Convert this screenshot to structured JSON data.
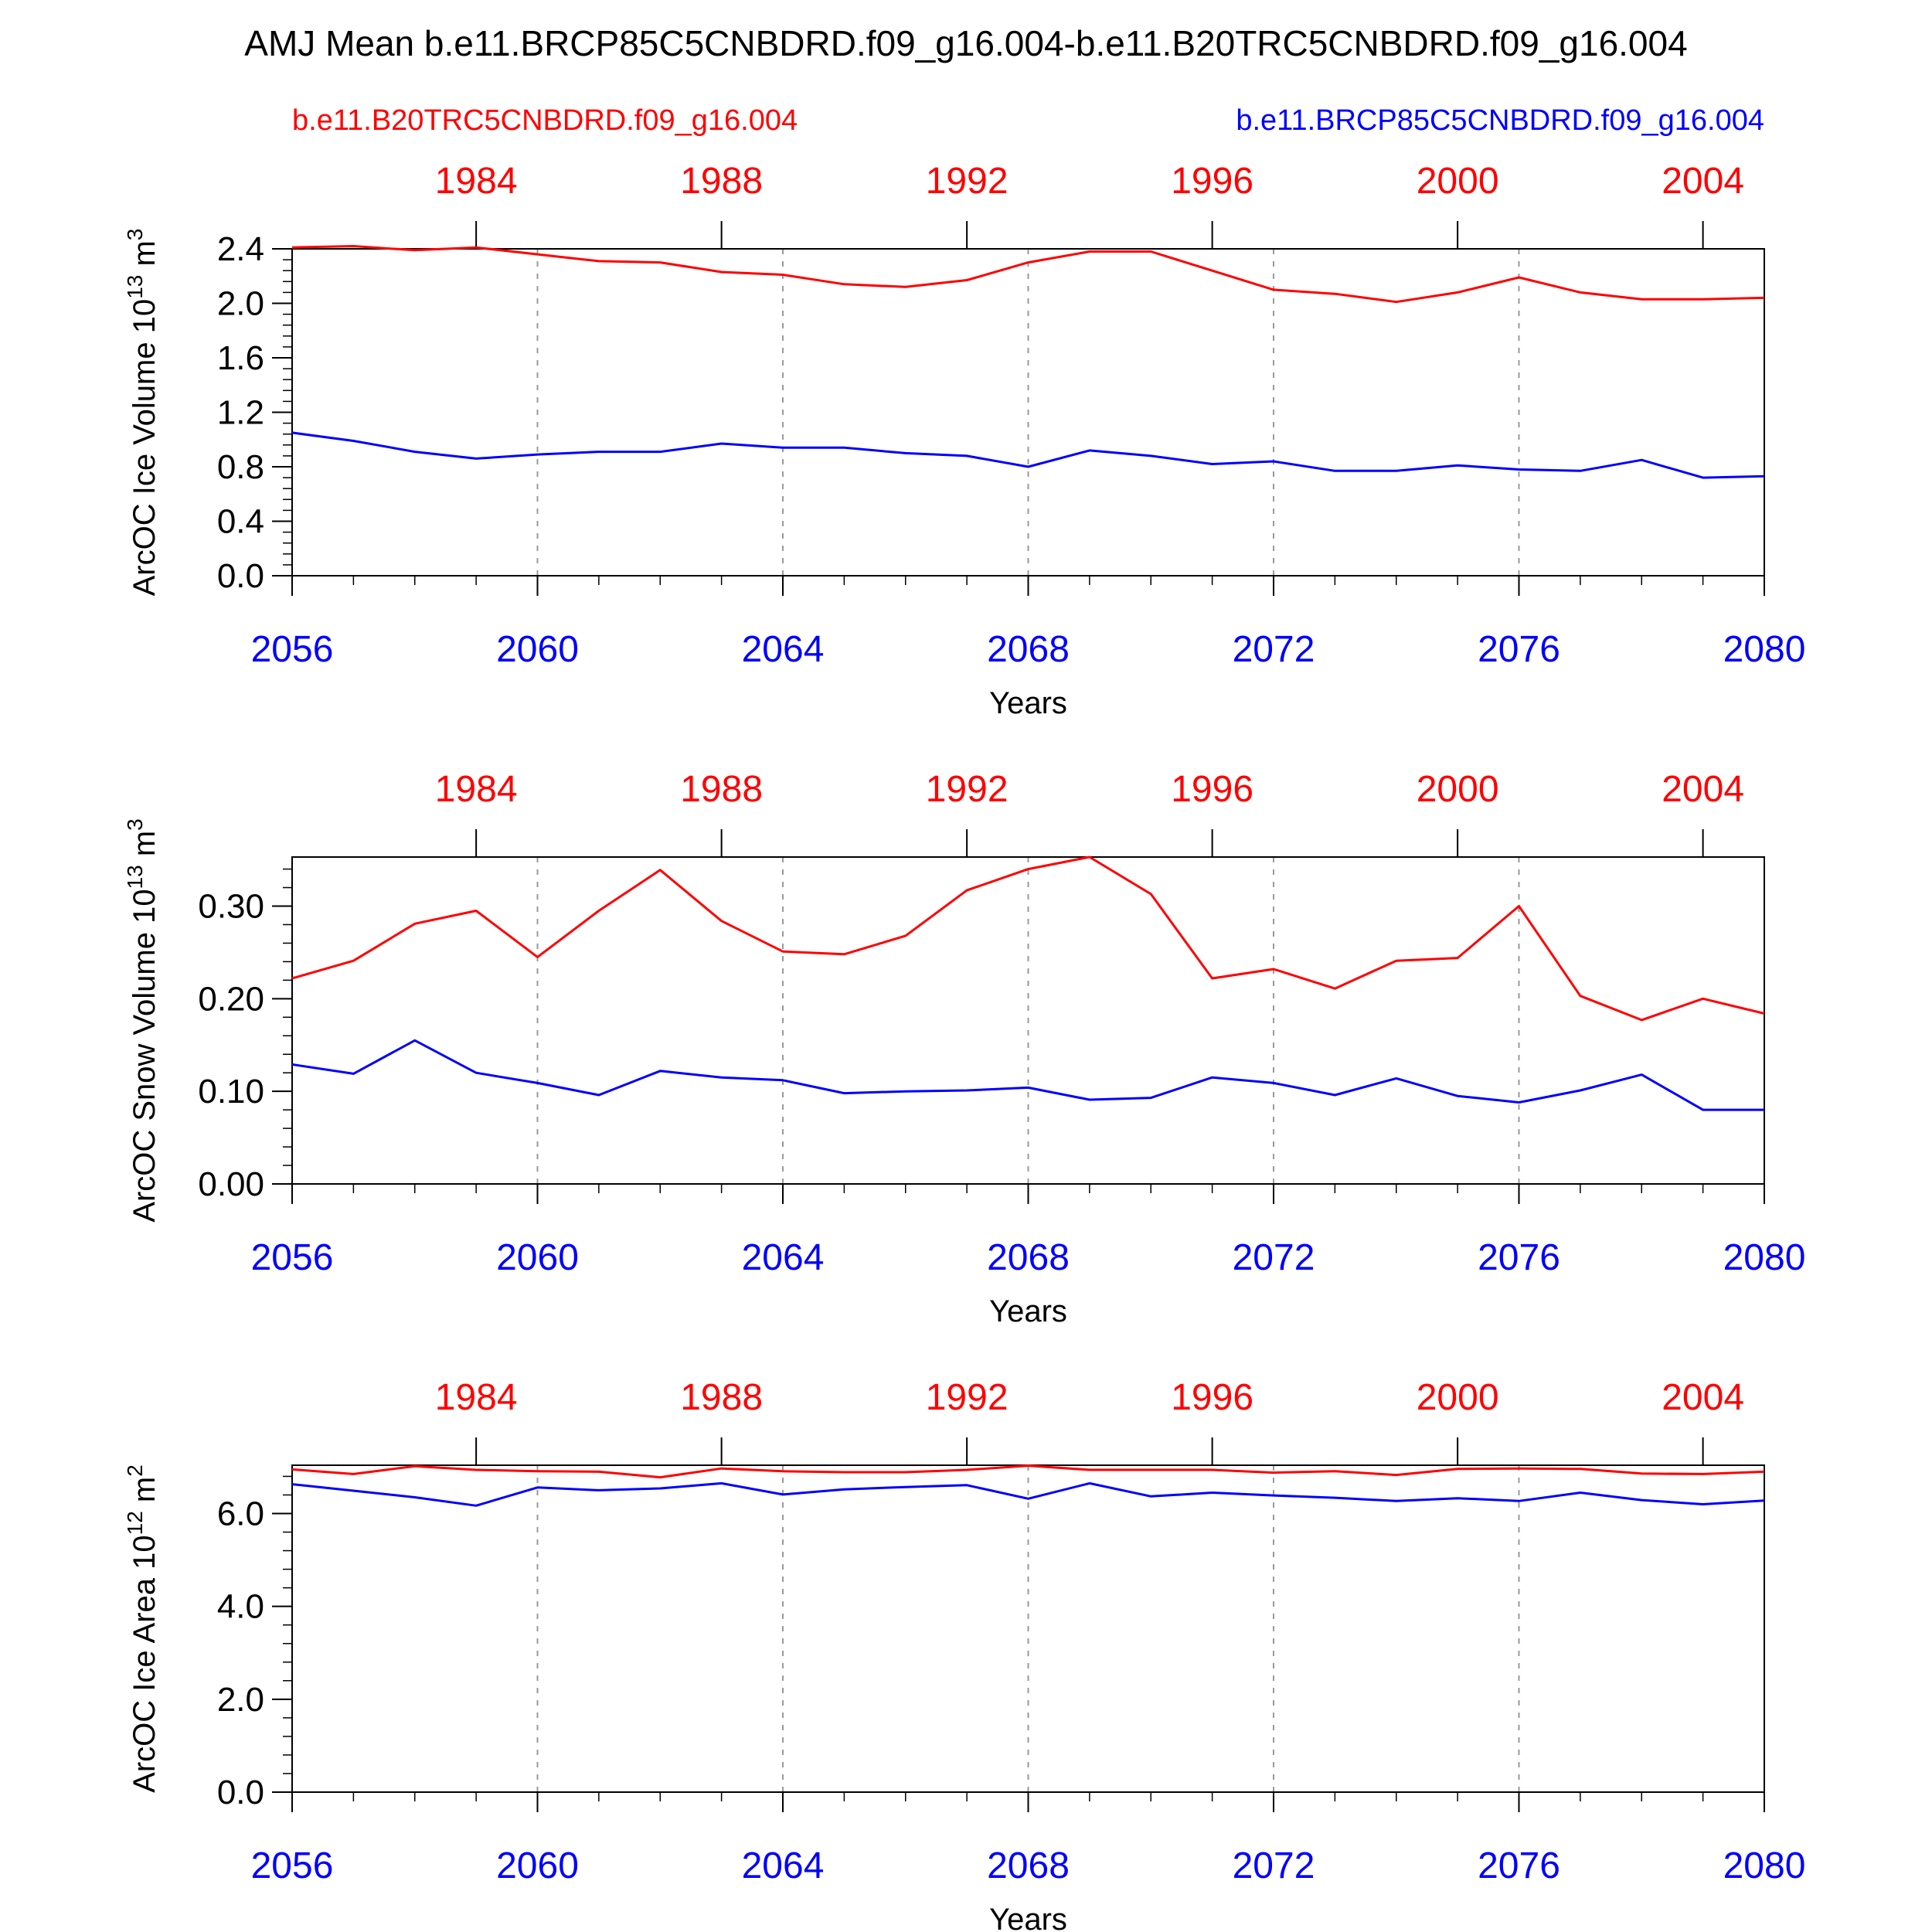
{
  "title": "AMJ Mean b.e11.BRCP85C5CNBDRD.f09_g16.004-b.e11.B20TRC5CNBDRD.f09_g16.004",
  "legend": {
    "left": {
      "label": "b.e11.B20TRC5CNBDRD.f09_g16.004",
      "color": "#ff0000"
    },
    "right": {
      "label": "b.e11.BRCP85C5CNBDRD.f09_g16.004",
      "color": "#0000ff"
    }
  },
  "colors": {
    "red": "#ff0000",
    "blue": "#0000ff",
    "axis": "#000000",
    "grid": "#9a9a9a"
  },
  "chart_data": [
    {
      "type": "line",
      "ylabel": "ArcOC Ice Volume",
      "yunit_base": "10",
      "yunit_exp": "13",
      "yunit_suffix": "m",
      "yunit_suffix_exp": "3",
      "xlabel": "Years",
      "ylim": [
        0,
        2.4
      ],
      "yticks": [
        "0.0",
        "0.4",
        "0.8",
        "1.2",
        "1.6",
        "2.0",
        "2.4"
      ],
      "xlim": [
        2056,
        2080
      ],
      "xticks": [
        "2056",
        "2060",
        "2064",
        "2068",
        "2072",
        "2076",
        "2080"
      ],
      "top_xticks": [
        "1984",
        "1988",
        "1992",
        "1996",
        "2000",
        "2004"
      ],
      "top_xlim": [
        1981,
        2005
      ],
      "grid": "dashed vertical at bottom ticks",
      "x": [
        2056,
        2057,
        2058,
        2059,
        2060,
        2061,
        2062,
        2063,
        2064,
        2065,
        2066,
        2067,
        2068,
        2069,
        2070,
        2071,
        2072,
        2073,
        2074,
        2075,
        2076,
        2077,
        2078,
        2079,
        2080
      ],
      "series": [
        {
          "name": "b.e11.B20TRC5CNBDRD.f09_g16.004",
          "color": "#ff0000",
          "values": [
            2.41,
            2.42,
            2.39,
            2.41,
            2.36,
            2.31,
            2.3,
            2.23,
            2.21,
            2.14,
            2.12,
            2.17,
            2.3,
            2.38,
            2.38,
            2.24,
            2.1,
            2.07,
            2.01,
            2.08,
            2.19,
            2.08,
            2.03,
            2.03,
            2.04
          ]
        },
        {
          "name": "b.e11.BRCP85C5CNBDRD.f09_g16.004",
          "color": "#0000ff",
          "values": [
            1.05,
            0.99,
            0.91,
            0.86,
            0.89,
            0.91,
            0.91,
            0.97,
            0.94,
            0.94,
            0.9,
            0.88,
            0.8,
            0.92,
            0.88,
            0.82,
            0.84,
            0.77,
            0.77,
            0.81,
            0.78,
            0.77,
            0.85,
            0.72,
            0.73
          ]
        }
      ]
    },
    {
      "type": "line",
      "ylabel": "ArcOC Snow Volume",
      "yunit_base": "10",
      "yunit_exp": "13",
      "yunit_suffix": "m",
      "yunit_suffix_exp": "3",
      "xlabel": "Years",
      "ylim": [
        0,
        0.353
      ],
      "yticks": [
        "0.00",
        "0.10",
        "0.20",
        "0.30"
      ],
      "xlim": [
        2056,
        2080
      ],
      "xticks": [
        "2056",
        "2060",
        "2064",
        "2068",
        "2072",
        "2076",
        "2080"
      ],
      "top_xticks": [
        "1984",
        "1988",
        "1992",
        "1996",
        "2000",
        "2004"
      ],
      "top_xlim": [
        1981,
        2005
      ],
      "grid": "dashed vertical at bottom ticks",
      "x": [
        2056,
        2057,
        2058,
        2059,
        2060,
        2061,
        2062,
        2063,
        2064,
        2065,
        2066,
        2067,
        2068,
        2069,
        2070,
        2071,
        2072,
        2073,
        2074,
        2075,
        2076,
        2077,
        2078,
        2079,
        2080
      ],
      "series": [
        {
          "name": "b.e11.B20TRC5CNBDRD.f09_g16.004",
          "color": "#ff0000",
          "values": [
            0.222,
            0.241,
            0.281,
            0.295,
            0.245,
            0.295,
            0.339,
            0.284,
            0.251,
            0.248,
            0.268,
            0.317,
            0.34,
            0.353,
            0.313,
            0.222,
            0.232,
            0.211,
            0.241,
            0.244,
            0.3,
            0.203,
            0.177,
            0.2,
            0.184
          ]
        },
        {
          "name": "b.e11.BRCP85C5CNBDRD.f09_g16.004",
          "color": "#0000ff",
          "values": [
            0.129,
            0.119,
            0.155,
            0.12,
            0.109,
            0.096,
            0.122,
            0.115,
            0.112,
            0.098,
            0.1,
            0.101,
            0.104,
            0.091,
            0.093,
            0.115,
            0.109,
            0.096,
            0.114,
            0.095,
            0.088,
            0.101,
            0.118,
            0.08,
            0.08
          ]
        }
      ]
    },
    {
      "type": "line",
      "ylabel": "ArcOC Ice Area",
      "yunit_base": "10",
      "yunit_exp": "12",
      "yunit_suffix": "m",
      "yunit_suffix_exp": "2",
      "xlabel": "Years",
      "ylim": [
        0,
        7.04
      ],
      "yticks": [
        "0.0",
        "2.0",
        "4.0",
        "6.0"
      ],
      "xlim": [
        2056,
        2080
      ],
      "xticks": [
        "2056",
        "2060",
        "2064",
        "2068",
        "2072",
        "2076",
        "2080"
      ],
      "top_xticks": [
        "1984",
        "1988",
        "1992",
        "1996",
        "2000",
        "2004"
      ],
      "top_xlim": [
        1981,
        2005
      ],
      "grid": "dashed vertical at bottom ticks",
      "x": [
        2056,
        2057,
        2058,
        2059,
        2060,
        2061,
        2062,
        2063,
        2064,
        2065,
        2066,
        2067,
        2068,
        2069,
        2070,
        2071,
        2072,
        2073,
        2074,
        2075,
        2076,
        2077,
        2078,
        2079,
        2080
      ],
      "series": [
        {
          "name": "b.e11.B20TRC5CNBDRD.f09_g16.004",
          "color": "#ff0000",
          "values": [
            6.95,
            6.85,
            7.02,
            6.94,
            6.91,
            6.9,
            6.78,
            6.97,
            6.91,
            6.89,
            6.89,
            6.94,
            7.03,
            6.94,
            6.94,
            6.94,
            6.88,
            6.91,
            6.83,
            6.96,
            6.97,
            6.96,
            6.86,
            6.85,
            6.9
          ]
        },
        {
          "name": "b.e11.BRCP85C5CNBDRD.f09_g16.004",
          "color": "#0000ff",
          "values": [
            6.63,
            6.49,
            6.35,
            6.17,
            6.56,
            6.5,
            6.54,
            6.65,
            6.41,
            6.52,
            6.57,
            6.61,
            6.32,
            6.65,
            6.37,
            6.45,
            6.39,
            6.34,
            6.27,
            6.33,
            6.27,
            6.45,
            6.29,
            6.2,
            6.28
          ]
        }
      ]
    }
  ]
}
